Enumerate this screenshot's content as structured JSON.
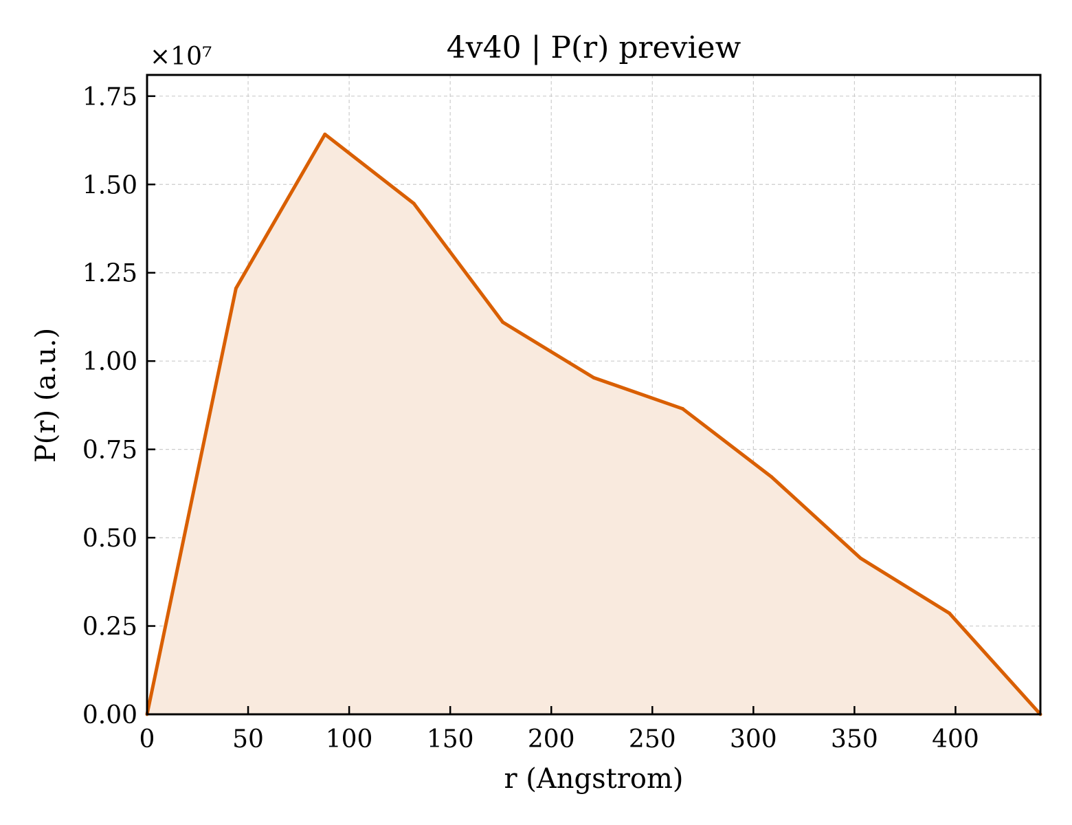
{
  "chart_data": {
    "type": "area",
    "title": "4v40 | P(r) preview",
    "xlabel": "r (Angstrom)",
    "ylabel": "P(r) (a.u.)",
    "y_multiplier_label": "×10⁷",
    "y_scale_factor": 10000000,
    "xlim": [
      0,
      442
    ],
    "ylim": [
      0,
      18100000
    ],
    "x_ticks": [
      0,
      50,
      100,
      150,
      200,
      250,
      300,
      350,
      400
    ],
    "x_tick_labels": [
      "0",
      "50",
      "100",
      "150",
      "200",
      "250",
      "300",
      "350",
      "400"
    ],
    "y_ticks": [
      0,
      2500000,
      5000000,
      7500000,
      10000000,
      12500000,
      15000000,
      17500000
    ],
    "y_tick_labels": [
      "0.00",
      "0.25",
      "0.50",
      "0.75",
      "1.00",
      "1.25",
      "1.50",
      "1.75"
    ],
    "grid": true,
    "series": [
      {
        "x": [
          0,
          44,
          88,
          132,
          176,
          221,
          265,
          309,
          353,
          397,
          442
        ],
        "values": [
          0,
          12060000,
          16420000,
          14460000,
          11100000,
          9530000,
          8650000,
          6720000,
          4420000,
          2860000,
          0
        ],
        "color": "#d95f02",
        "fill_color": "#f9eade"
      }
    ]
  }
}
